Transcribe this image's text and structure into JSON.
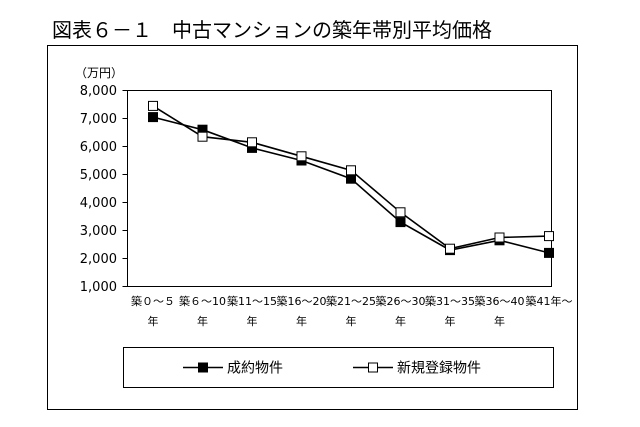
{
  "chart_data": {
    "type": "line",
    "title": "図表６－１　中古マンションの築年帯別平均価格",
    "ylabel": "（万円）",
    "categories": [
      "築０～５年",
      "築６～10年",
      "築11～15年",
      "築16～20年",
      "築21～25年",
      "築26～30年",
      "築31～35年",
      "築36～40年",
      "築41年～"
    ],
    "ylim": [
      1000,
      8000
    ],
    "ytick_labels": [
      "8,000",
      "7,000",
      "6,000",
      "5,000",
      "4,000",
      "3,000",
      "2,000",
      "1,000"
    ],
    "grid": false,
    "legend_position": "bottom",
    "series": [
      {
        "name": "成約物件",
        "marker": "filled-square",
        "color": "#000000",
        "values": [
          7050,
          6600,
          5950,
          5500,
          4850,
          3300,
          2300,
          2650,
          2200
        ]
      },
      {
        "name": "新規登録物件",
        "marker": "open-square",
        "color": "#000000",
        "values": [
          7450,
          6350,
          6150,
          5650,
          5150,
          3650,
          2350,
          2750,
          2800
        ]
      }
    ]
  }
}
